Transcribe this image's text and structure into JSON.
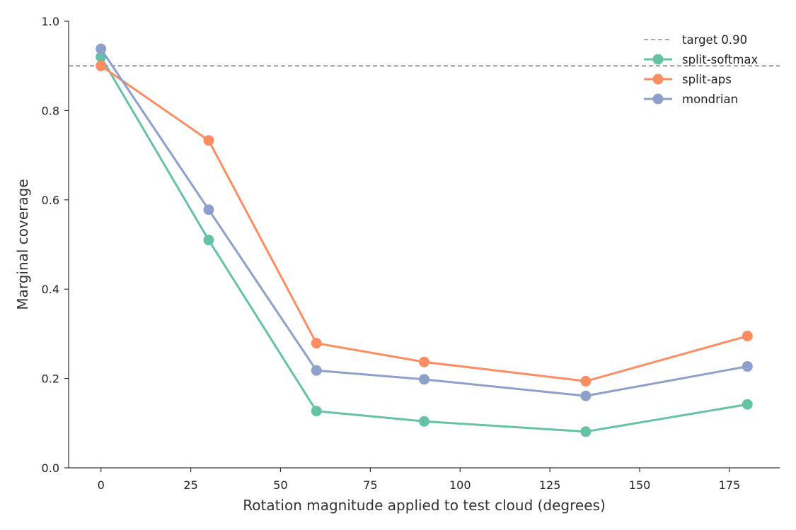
{
  "chart_data": {
    "type": "line",
    "title": "",
    "xlabel": "Rotation magnitude applied to test cloud (degrees)",
    "ylabel": "Marginal coverage",
    "xlim": [
      -9,
      189
    ],
    "ylim": [
      0.0,
      1.0
    ],
    "x_ticks": [
      0,
      25,
      50,
      75,
      100,
      125,
      150,
      175
    ],
    "y_ticks": [
      0.0,
      0.2,
      0.4,
      0.6,
      0.8,
      1.0
    ],
    "x_tick_labels": [
      "0",
      "25",
      "50",
      "75",
      "100",
      "125",
      "150",
      "175"
    ],
    "y_tick_labels": [
      "0.0",
      "0.2",
      "0.4",
      "0.6",
      "0.8",
      "1.0"
    ],
    "grid": false,
    "legend_position": "top-right",
    "reference_line": {
      "label": "target 0.90",
      "y": 0.9,
      "color": "#888888",
      "style": "dashed"
    },
    "x": [
      0,
      30,
      60,
      90,
      135,
      180
    ],
    "series": [
      {
        "name": "split-softmax",
        "color": "#66c2a5",
        "values": [
          0.92,
          0.51,
          0.127,
          0.104,
          0.081,
          0.142
        ]
      },
      {
        "name": "split-aps",
        "color": "#fc8d62",
        "values": [
          0.9,
          0.733,
          0.279,
          0.237,
          0.194,
          0.295
        ]
      },
      {
        "name": "mondrian",
        "color": "#8da0cb",
        "values": [
          0.938,
          0.578,
          0.218,
          0.198,
          0.161,
          0.227
        ]
      }
    ]
  }
}
